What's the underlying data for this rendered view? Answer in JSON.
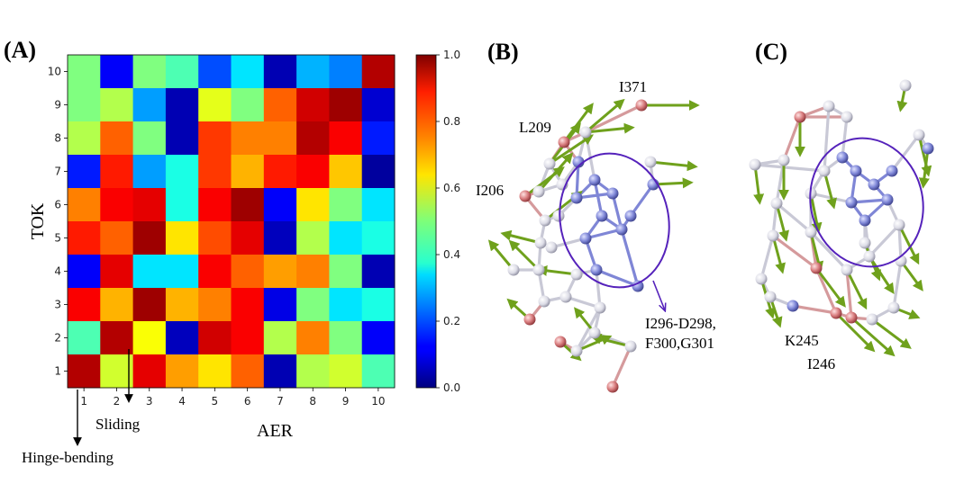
{
  "chart_data": {
    "type": "heatmap",
    "title": "",
    "xlabel": "AER",
    "ylabel": "TOK",
    "x_ticks": [
      "1",
      "2",
      "3",
      "4",
      "5",
      "6",
      "7",
      "8",
      "9",
      "10"
    ],
    "y_ticks": [
      "1",
      "2",
      "3",
      "4",
      "5",
      "6",
      "7",
      "8",
      "9",
      "10"
    ],
    "colorbar": {
      "min": 0.0,
      "max": 1.0,
      "ticks": [
        "0.0",
        "0.2",
        "0.4",
        "0.6",
        "0.8",
        "1.0"
      ],
      "colormap": "jet"
    },
    "matrix_rows_top_to_bottom_y10_to_y1": [
      [
        0.5,
        0.12,
        0.5,
        0.45,
        0.2,
        0.35,
        0.05,
        0.3,
        0.25,
        0.95
      ],
      [
        0.5,
        0.55,
        0.28,
        0.05,
        0.6,
        0.5,
        0.78,
        0.92,
        0.97,
        0.08
      ],
      [
        0.55,
        0.78,
        0.5,
        0.05,
        0.82,
        0.75,
        0.75,
        0.95,
        0.88,
        0.15
      ],
      [
        0.15,
        0.85,
        0.28,
        0.4,
        0.82,
        0.7,
        0.85,
        0.88,
        0.68,
        0.03
      ],
      [
        0.75,
        0.88,
        0.9,
        0.4,
        0.88,
        0.97,
        0.12,
        0.65,
        0.5,
        0.35
      ],
      [
        0.85,
        0.78,
        0.97,
        0.65,
        0.8,
        0.9,
        0.06,
        0.55,
        0.35,
        0.4
      ],
      [
        0.12,
        0.9,
        0.35,
        0.35,
        0.88,
        0.78,
        0.72,
        0.75,
        0.5,
        0.05
      ],
      [
        0.88,
        0.7,
        0.97,
        0.7,
        0.75,
        0.88,
        0.1,
        0.5,
        0.35,
        0.4
      ],
      [
        0.45,
        0.95,
        0.62,
        0.06,
        0.92,
        0.88,
        0.55,
        0.75,
        0.5,
        0.12
      ],
      [
        0.95,
        0.58,
        0.9,
        0.72,
        0.65,
        0.78,
        0.05,
        0.55,
        0.58,
        0.45
      ]
    ],
    "annotations": [
      {
        "text": "Hinge-bending",
        "x": "1"
      },
      {
        "text": "Sliding",
        "x": "2"
      }
    ]
  },
  "panels": {
    "a": "(A)",
    "b": "(B)",
    "c": "(C)"
  },
  "residues_b": {
    "r1": "I371",
    "r2": "L209",
    "r3": "I206",
    "r4_line1": "I296-D298,",
    "r4_line2": "F300,G301"
  },
  "residues_c": {
    "r1": "K245",
    "r2": "I246"
  },
  "colors": {
    "arrow": "#6fa11c",
    "node_blue": "#7f86d6",
    "node_red": "#d9787a",
    "node_white": "#e6e6ee",
    "ellipse": "#5522bb"
  }
}
